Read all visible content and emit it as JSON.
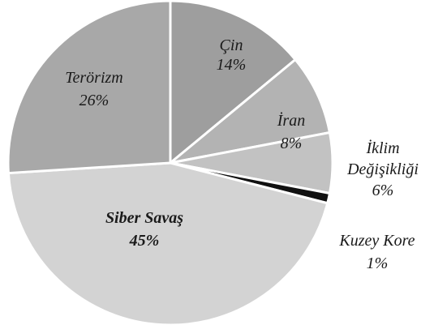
{
  "chart_data": {
    "type": "pie",
    "title": "",
    "start_angle_deg": -90,
    "slices": [
      {
        "name": "Çin",
        "value": 14,
        "label": "14%",
        "color": "#9e9e9e"
      },
      {
        "name": "İran",
        "value": 8,
        "label": "8%",
        "color": "#b3b3b3"
      },
      {
        "name": "İklim Değişikliği",
        "value": 6,
        "label": "6%",
        "color": "#c2c2c2"
      },
      {
        "name": "Kuzey Kore",
        "value": 1,
        "label": "1%",
        "color": "#111111"
      },
      {
        "name": "Siber Savaş",
        "value": 45,
        "label": "45%",
        "color": "#d3d3d3"
      },
      {
        "name": "Terörizm",
        "value": 26,
        "label": "26%",
        "color": "#a8a8a8"
      }
    ],
    "label_lines": {
      "Çin": [
        "Çin",
        "14%"
      ],
      "İran": [
        "İran",
        "8%"
      ],
      "İklim Değişikliği": [
        "İklim",
        "Değişikliği",
        "6%"
      ],
      "Kuzey Kore": [
        "Kuzey Kore",
        "1%"
      ],
      "Siber Savaş": [
        "Siber Savaş",
        "45%"
      ],
      "Terörizm": [
        "Terörizm",
        "26%"
      ]
    },
    "emphasized_slice": "Siber Savaş"
  }
}
